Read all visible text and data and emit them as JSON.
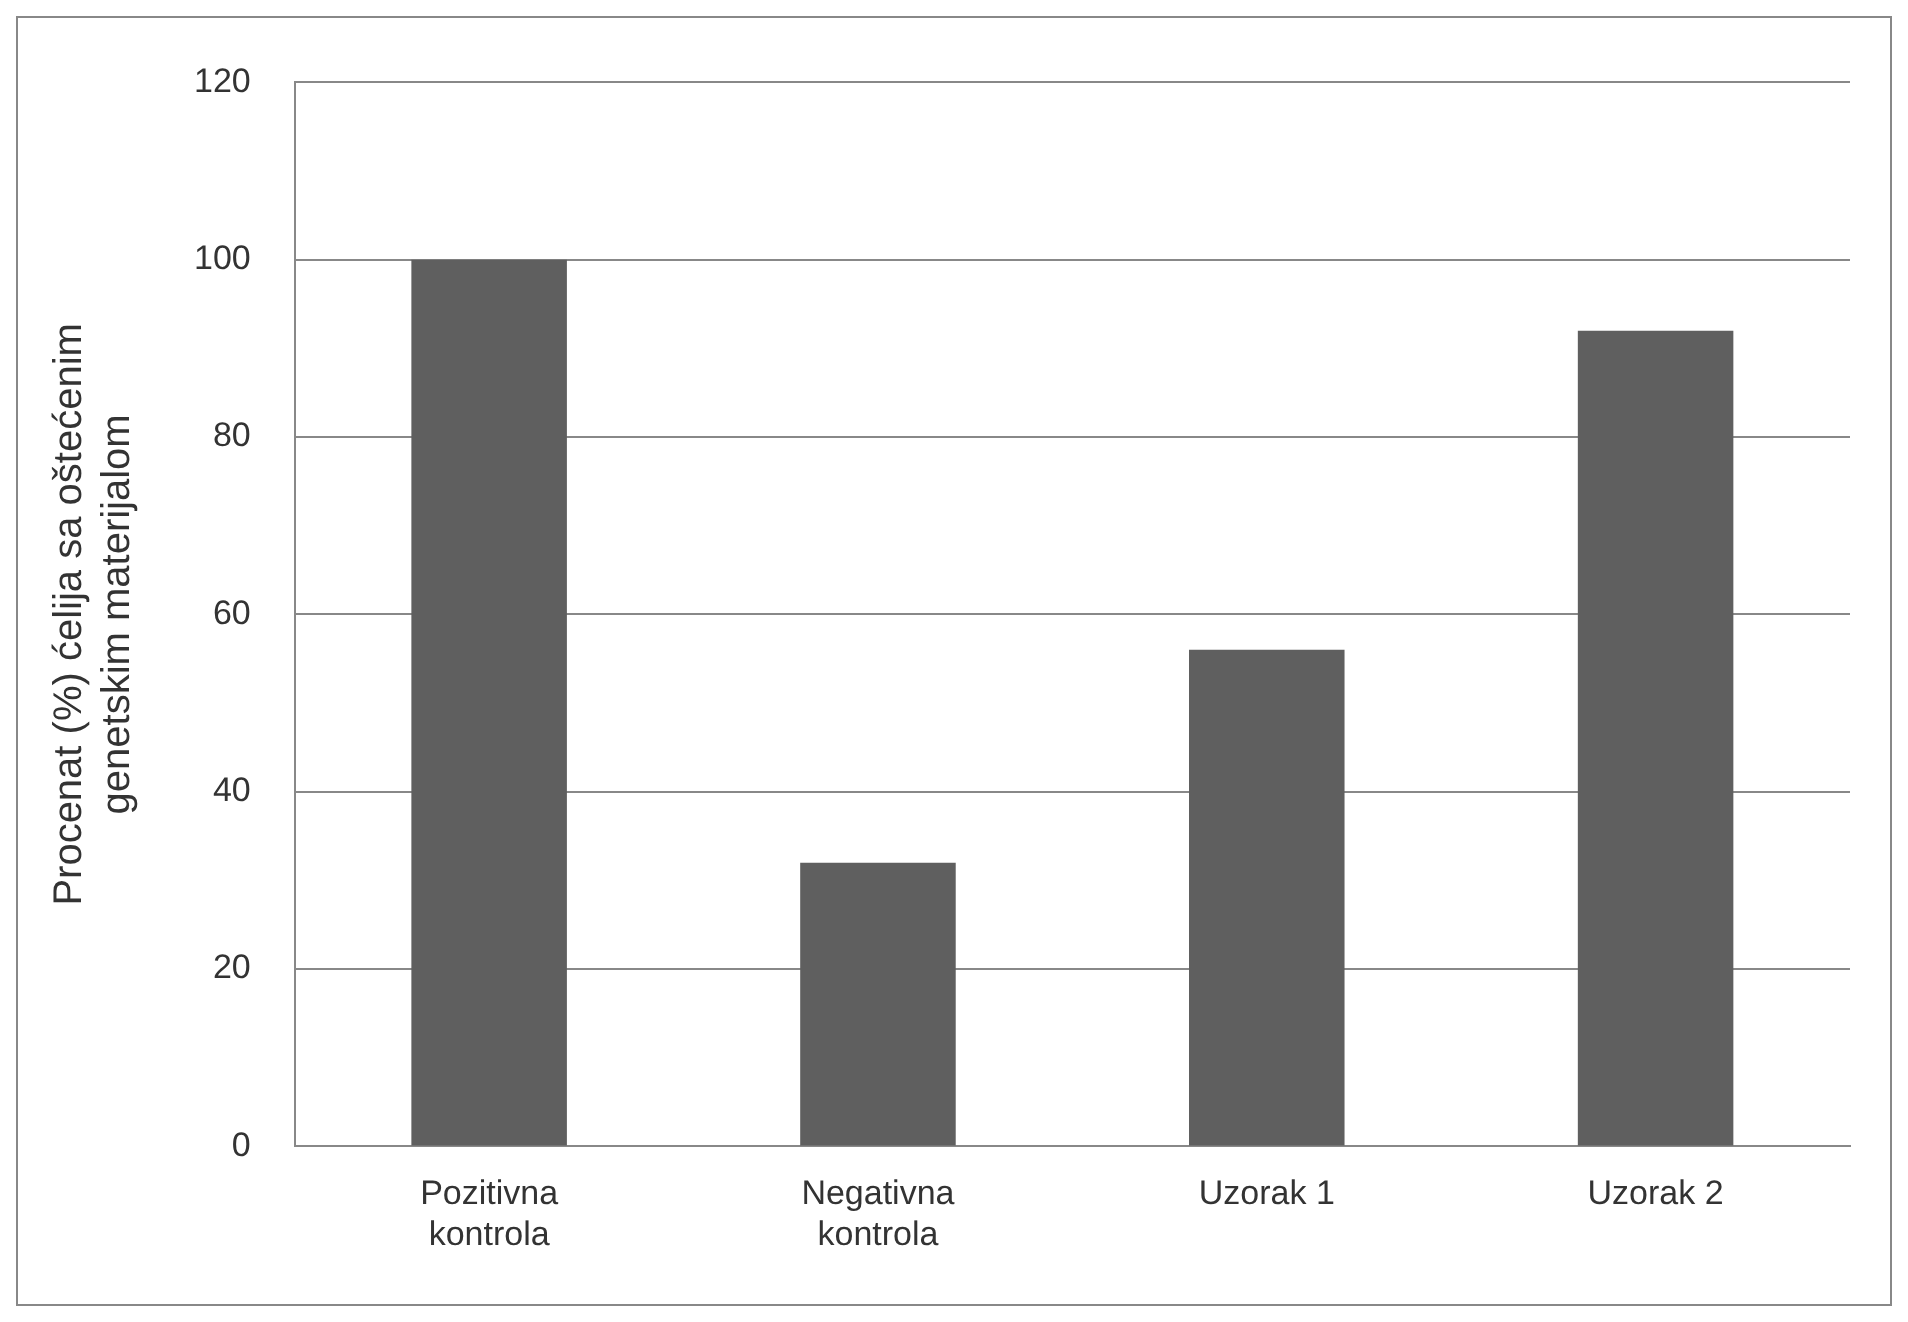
{
  "chart_data": {
    "type": "bar",
    "ylabel": "Procenat (%) ćelija sa oštećenim genetskim materijalom",
    "categories": [
      "Pozitivna kontrola",
      "Negativna kontrola",
      "Uzorak 1",
      "Uzorak 2"
    ],
    "values": [
      100,
      32,
      56,
      92
    ],
    "color": "#5f5f5f",
    "ylim": [
      0,
      120
    ],
    "yticks": [
      0,
      20,
      40,
      60,
      80,
      100,
      120
    ],
    "grid": "y",
    "legend": false
  }
}
